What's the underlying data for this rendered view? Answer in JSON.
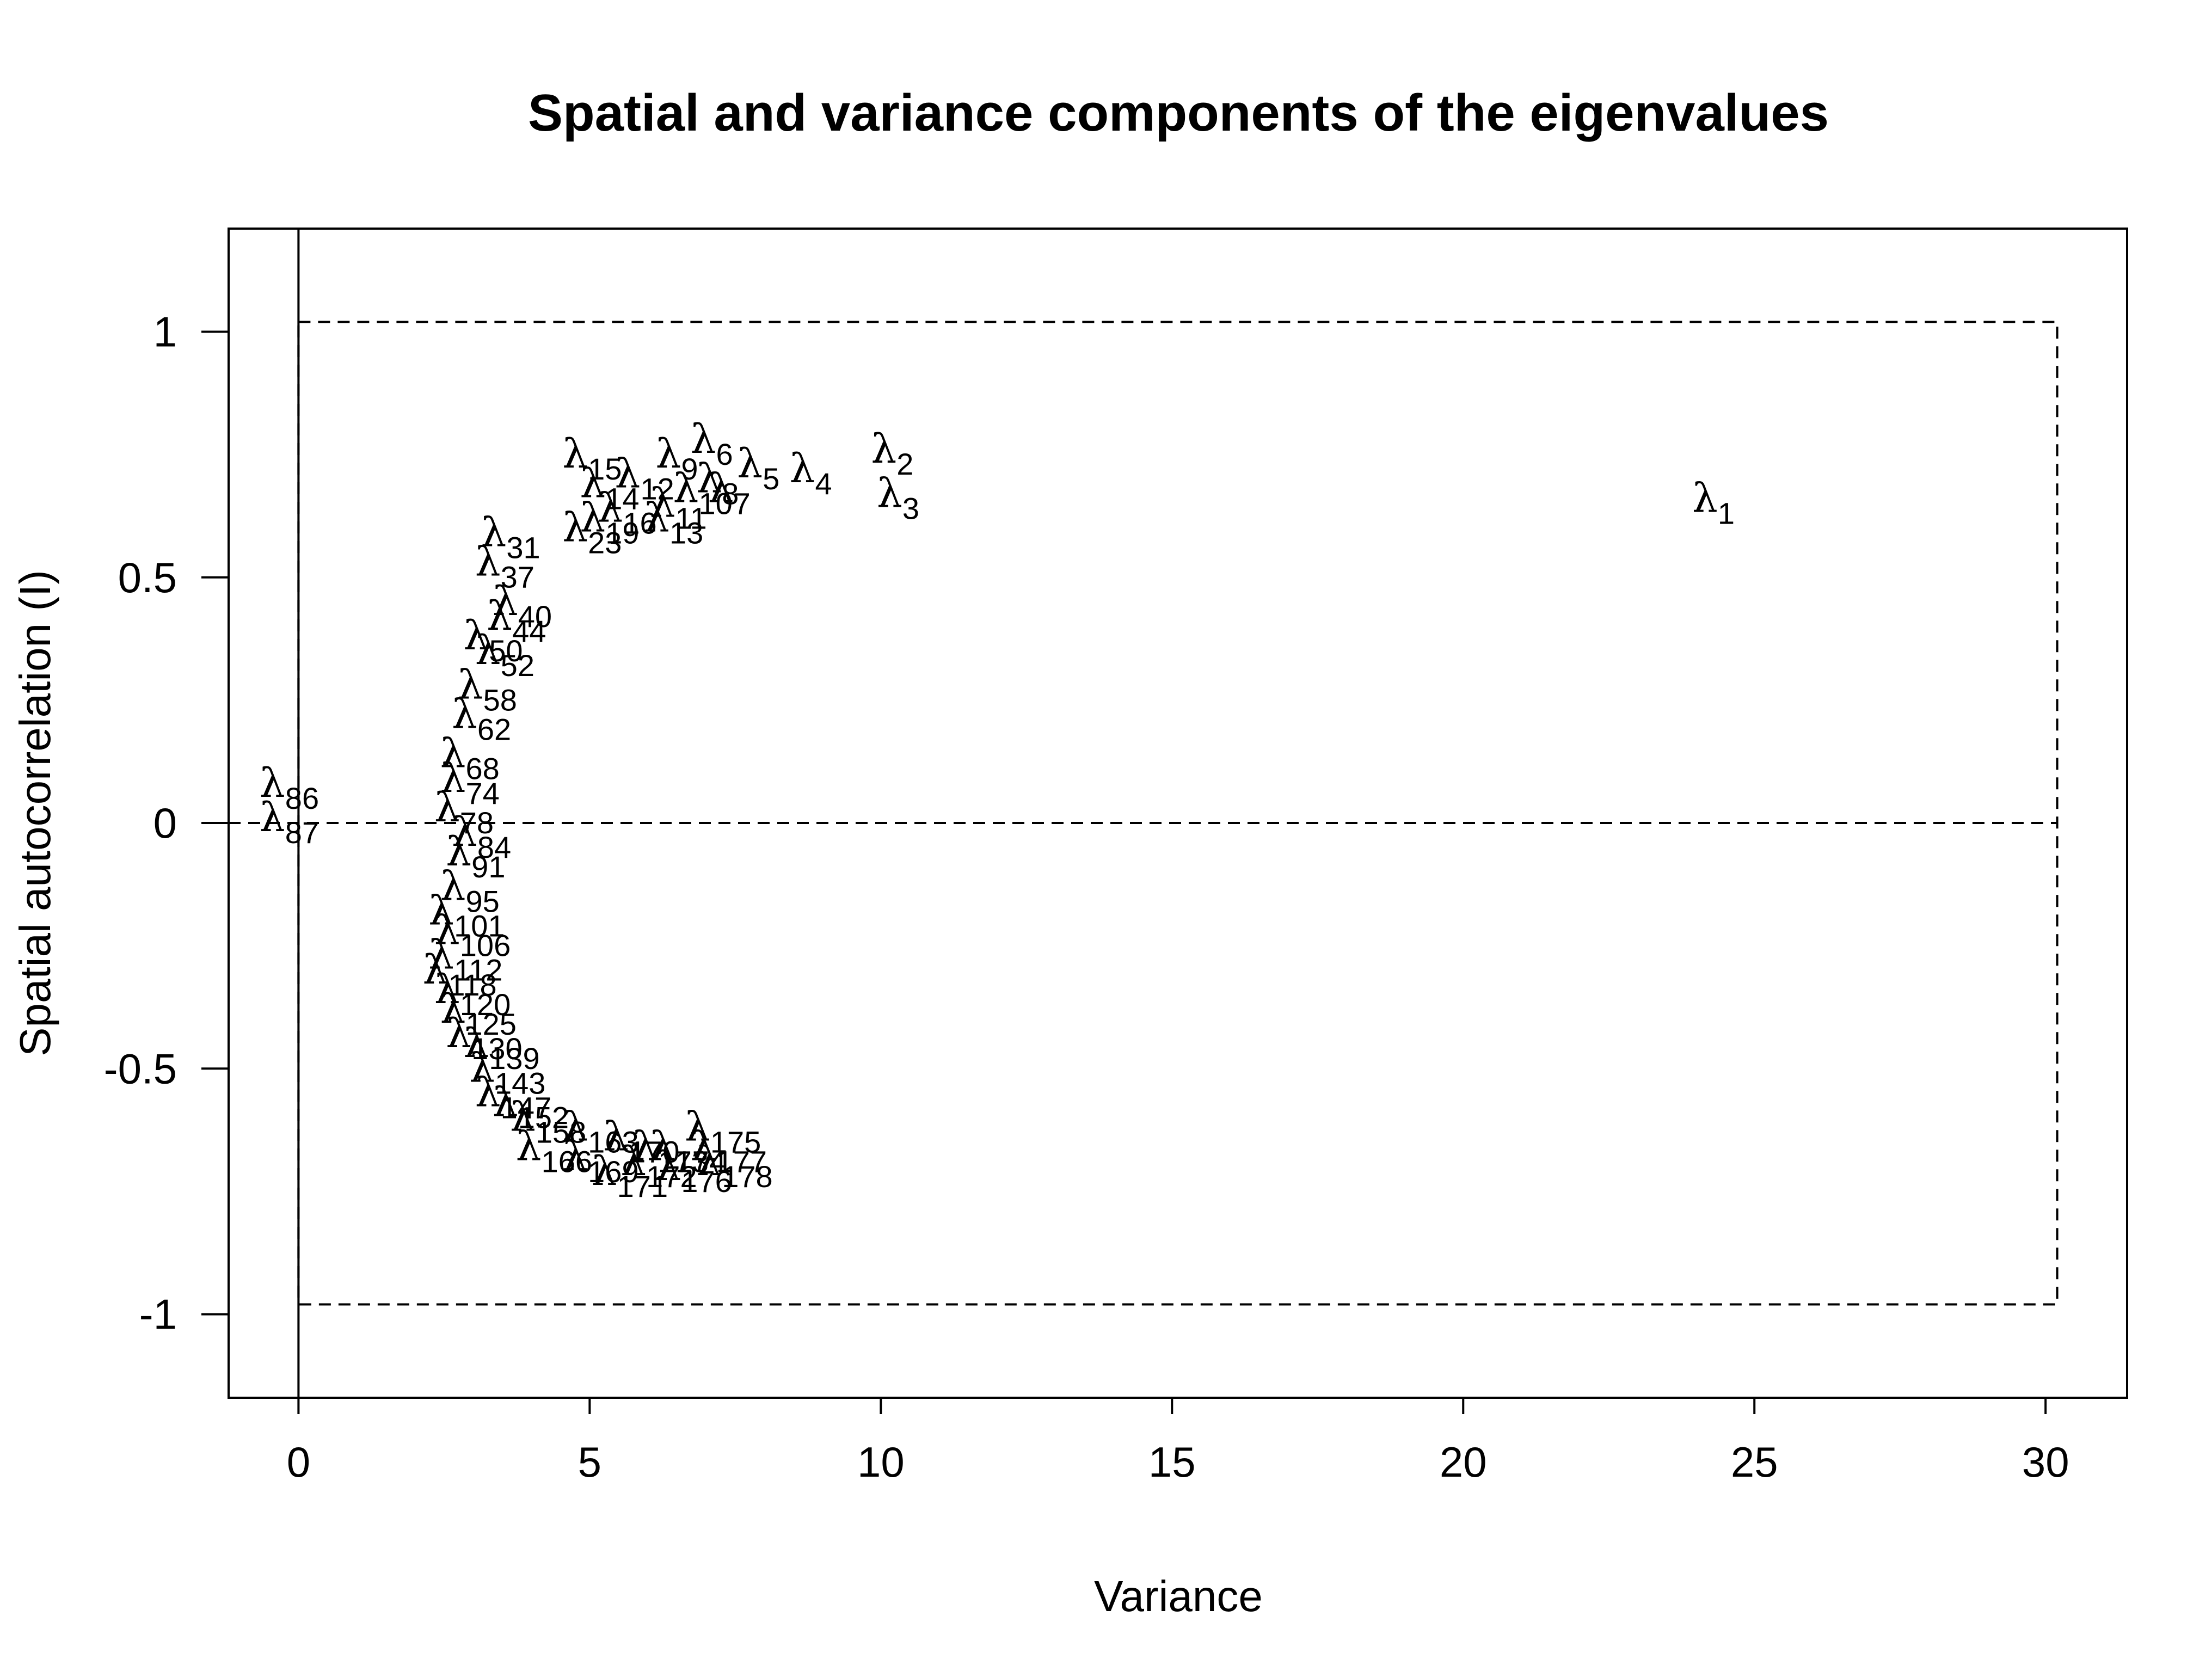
{
  "chart_data": {
    "type": "scatter",
    "title": "Spatial and variance components of the eigenvalues",
    "xlabel": "Variance",
    "ylabel": "Spatial autocorrelation (I)",
    "xlim": [
      -1.2,
      31.4
    ],
    "ylim": [
      -1.17,
      1.21
    ],
    "xticks": [
      0,
      5,
      10,
      15,
      20,
      25,
      30
    ],
    "yticks": [
      -1,
      -0.5,
      0,
      0.5,
      1
    ],
    "ytick_labels": [
      "-1",
      "-0.5",
      "0",
      "0.5",
      "1"
    ],
    "grid": false,
    "legend": "none",
    "label_symbol": "λ",
    "reference_lines": {
      "vertical_solid_x": 0,
      "horizontal_dashed_y": 0,
      "dashed_box": {
        "xmin": 0,
        "xmax": 30.2,
        "ymin": -0.98,
        "ymax": 1.02
      }
    },
    "points": [
      {
        "label": "1",
        "x": 24.1,
        "y": 0.66
      },
      {
        "label": "2",
        "x": 10.0,
        "y": 0.76
      },
      {
        "label": "3",
        "x": 10.1,
        "y": 0.67
      },
      {
        "label": "4",
        "x": 8.6,
        "y": 0.72
      },
      {
        "label": "5",
        "x": 7.7,
        "y": 0.73
      },
      {
        "label": "6",
        "x": 6.9,
        "y": 0.78
      },
      {
        "label": "7",
        "x": 7.2,
        "y": 0.68
      },
      {
        "label": "8",
        "x": 7.0,
        "y": 0.7
      },
      {
        "label": "9",
        "x": 6.3,
        "y": 0.75
      },
      {
        "label": "10",
        "x": 6.6,
        "y": 0.68
      },
      {
        "label": "11",
        "x": 6.2,
        "y": 0.65
      },
      {
        "label": "12",
        "x": 5.6,
        "y": 0.71
      },
      {
        "label": "13",
        "x": 6.1,
        "y": 0.62
      },
      {
        "label": "14",
        "x": 5.0,
        "y": 0.69
      },
      {
        "label": "15",
        "x": 4.7,
        "y": 0.75
      },
      {
        "label": "16",
        "x": 5.3,
        "y": 0.64
      },
      {
        "label": "19",
        "x": 5.0,
        "y": 0.62
      },
      {
        "label": "23",
        "x": 4.7,
        "y": 0.6
      },
      {
        "label": "31",
        "x": 3.3,
        "y": 0.59
      },
      {
        "label": "37",
        "x": 3.2,
        "y": 0.53
      },
      {
        "label": "40",
        "x": 3.5,
        "y": 0.45
      },
      {
        "label": "44",
        "x": 3.4,
        "y": 0.42
      },
      {
        "label": "50",
        "x": 3.0,
        "y": 0.38
      },
      {
        "label": "52",
        "x": 3.2,
        "y": 0.35
      },
      {
        "label": "58",
        "x": 2.9,
        "y": 0.28
      },
      {
        "label": "62",
        "x": 2.8,
        "y": 0.22
      },
      {
        "label": "68",
        "x": 2.6,
        "y": 0.14
      },
      {
        "label": "74",
        "x": 2.6,
        "y": 0.09
      },
      {
        "label": "78",
        "x": 2.5,
        "y": 0.03
      },
      {
        "label": "84",
        "x": 2.8,
        "y": -0.02
      },
      {
        "label": "86",
        "x": -0.5,
        "y": 0.08
      },
      {
        "label": "87",
        "x": -0.5,
        "y": 0.01
      },
      {
        "label": "91",
        "x": 2.7,
        "y": -0.06
      },
      {
        "label": "95",
        "x": 2.6,
        "y": -0.13
      },
      {
        "label": "101",
        "x": 2.4,
        "y": -0.18
      },
      {
        "label": "106",
        "x": 2.5,
        "y": -0.22
      },
      {
        "label": "112",
        "x": 2.4,
        "y": -0.27
      },
      {
        "label": "118",
        "x": 2.3,
        "y": -0.3
      },
      {
        "label": "120",
        "x": 2.5,
        "y": -0.34
      },
      {
        "label": "125",
        "x": 2.6,
        "y": -0.38
      },
      {
        "label": "130",
        "x": 2.7,
        "y": -0.43
      },
      {
        "label": "139",
        "x": 3.0,
        "y": -0.45
      },
      {
        "label": "143",
        "x": 3.1,
        "y": -0.5
      },
      {
        "label": "147",
        "x": 3.2,
        "y": -0.55
      },
      {
        "label": "152",
        "x": 3.5,
        "y": -0.57
      },
      {
        "label": "158",
        "x": 3.8,
        "y": -0.6
      },
      {
        "label": "163",
        "x": 4.7,
        "y": -0.62
      },
      {
        "label": "166",
        "x": 3.9,
        "y": -0.66
      },
      {
        "label": "169",
        "x": 4.7,
        "y": -0.68
      },
      {
        "label": "170",
        "x": 5.4,
        "y": -0.64
      },
      {
        "label": "171",
        "x": 5.2,
        "y": -0.71
      },
      {
        "label": "172",
        "x": 5.7,
        "y": -0.69
      },
      {
        "label": "173",
        "x": 5.9,
        "y": -0.66
      },
      {
        "label": "174",
        "x": 6.2,
        "y": -0.66
      },
      {
        "label": "175",
        "x": 6.8,
        "y": -0.62
      },
      {
        "label": "176",
        "x": 6.3,
        "y": -0.7
      },
      {
        "label": "177",
        "x": 6.9,
        "y": -0.66
      },
      {
        "label": "178",
        "x": 7.0,
        "y": -0.69
      }
    ]
  }
}
